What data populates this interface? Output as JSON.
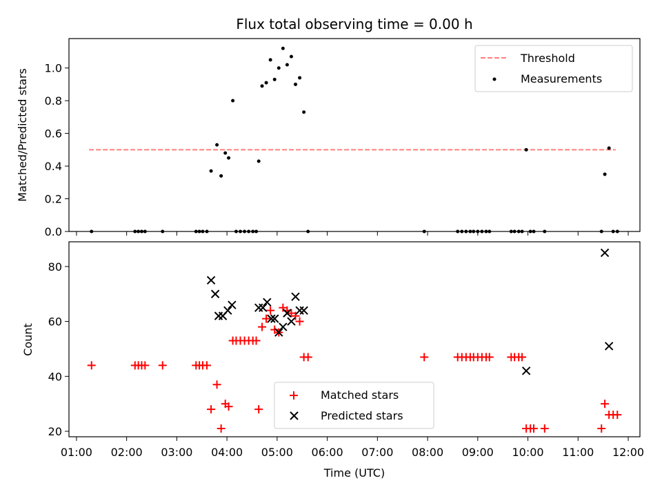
{
  "title": "Flux total observing time = 0.00 h",
  "chart_data": [
    {
      "type": "scatter",
      "ylabel": "Matched/Predicted stars",
      "xlim": [
        "00:51",
        "12:14"
      ],
      "ylim": [
        0,
        1.18
      ],
      "yticks": [
        "0.0",
        "0.2",
        "0.4",
        "0.6",
        "0.8",
        "1.0"
      ],
      "ytick_values": [
        0,
        0.2,
        0.4,
        0.6,
        0.8,
        1.0
      ],
      "legend": {
        "placement": "upper right",
        "entries": [
          "Threshold",
          "Measurements"
        ]
      },
      "threshold": {
        "name": "Threshold",
        "value": 0.5,
        "x_start": "01:15",
        "x_end": "11:45",
        "color": "#ff7f7f",
        "style": "dashed"
      },
      "series": [
        {
          "name": "Measurements",
          "color": "#000000",
          "marker": "dot",
          "points": [
            [
              "01:18",
              0
            ],
            [
              "02:10",
              0
            ],
            [
              "02:14",
              0
            ],
            [
              "02:18",
              0
            ],
            [
              "02:22",
              0
            ],
            [
              "02:43",
              0
            ],
            [
              "03:23",
              0
            ],
            [
              "03:27",
              0
            ],
            [
              "03:31",
              0
            ],
            [
              "03:36",
              0
            ],
            [
              "03:41",
              0.37
            ],
            [
              "03:48",
              0.53
            ],
            [
              "03:53",
              0.34
            ],
            [
              "03:58",
              0.48
            ],
            [
              "04:02",
              0.45
            ],
            [
              "04:07",
              0.8
            ],
            [
              "04:11",
              0
            ],
            [
              "04:16",
              0
            ],
            [
              "04:21",
              0
            ],
            [
              "04:26",
              0
            ],
            [
              "04:31",
              0
            ],
            [
              "04:35",
              0
            ],
            [
              "04:38",
              0.43
            ],
            [
              "04:42",
              0.89
            ],
            [
              "04:47",
              0.91
            ],
            [
              "04:52",
              1.05
            ],
            [
              "04:57",
              0.93
            ],
            [
              "05:02",
              1.0
            ],
            [
              "05:07",
              1.12
            ],
            [
              "05:12",
              1.02
            ],
            [
              "05:17",
              1.07
            ],
            [
              "05:22",
              0.9
            ],
            [
              "05:27",
              0.94
            ],
            [
              "05:32",
              0.73
            ],
            [
              "05:37",
              0
            ],
            [
              "07:56",
              0
            ],
            [
              "08:36",
              0
            ],
            [
              "08:41",
              0
            ],
            [
              "08:46",
              0
            ],
            [
              "08:51",
              0
            ],
            [
              "08:55",
              0
            ],
            [
              "09:00",
              0
            ],
            [
              "09:05",
              0
            ],
            [
              "09:10",
              0
            ],
            [
              "09:14",
              0
            ],
            [
              "09:40",
              0
            ],
            [
              "09:44",
              0
            ],
            [
              "09:49",
              0
            ],
            [
              "09:53",
              0
            ],
            [
              "09:58",
              0.5
            ],
            [
              "10:03",
              0
            ],
            [
              "10:07",
              0
            ],
            [
              "10:20",
              0
            ],
            [
              "11:28",
              0
            ],
            [
              "11:32",
              0.35
            ],
            [
              "11:37",
              0.51
            ],
            [
              "11:42",
              0
            ],
            [
              "11:47",
              0
            ]
          ]
        }
      ]
    },
    {
      "type": "scatter",
      "xlabel": "Time (UTC)",
      "ylabel": "Count",
      "xlim": [
        "00:51",
        "12:14"
      ],
      "ylim": [
        18,
        89
      ],
      "xticks": [
        "01:00",
        "02:00",
        "03:00",
        "04:00",
        "05:00",
        "06:00",
        "07:00",
        "08:00",
        "09:00",
        "10:00",
        "11:00",
        "12:00"
      ],
      "yticks": [
        "20",
        "40",
        "60",
        "80"
      ],
      "ytick_values": [
        20,
        40,
        60,
        80
      ],
      "legend": {
        "placement": "lower center",
        "entries": [
          "Matched stars",
          "Predicted stars"
        ]
      },
      "series": [
        {
          "name": "Matched stars",
          "color": "#ff0000",
          "marker": "plus",
          "points": [
            [
              "01:18",
              44
            ],
            [
              "02:10",
              44
            ],
            [
              "02:14",
              44
            ],
            [
              "02:18",
              44
            ],
            [
              "02:22",
              44
            ],
            [
              "02:43",
              44
            ],
            [
              "03:23",
              44
            ],
            [
              "03:27",
              44
            ],
            [
              "03:31",
              44
            ],
            [
              "03:36",
              44
            ],
            [
              "03:41",
              28
            ],
            [
              "03:48",
              37
            ],
            [
              "03:53",
              21
            ],
            [
              "03:58",
              30
            ],
            [
              "04:02",
              29
            ],
            [
              "04:07",
              53
            ],
            [
              "04:11",
              53
            ],
            [
              "04:16",
              53
            ],
            [
              "04:21",
              53
            ],
            [
              "04:26",
              53
            ],
            [
              "04:31",
              53
            ],
            [
              "04:35",
              53
            ],
            [
              "04:38",
              28
            ],
            [
              "04:42",
              58
            ],
            [
              "04:47",
              61
            ],
            [
              "04:52",
              64
            ],
            [
              "04:57",
              57
            ],
            [
              "05:02",
              56
            ],
            [
              "05:07",
              65
            ],
            [
              "05:12",
              64
            ],
            [
              "05:17",
              63
            ],
            [
              "05:22",
              62
            ],
            [
              "05:27",
              60
            ],
            [
              "05:32",
              47
            ],
            [
              "05:37",
              47
            ],
            [
              "07:56",
              47
            ],
            [
              "08:36",
              47
            ],
            [
              "08:41",
              47
            ],
            [
              "08:46",
              47
            ],
            [
              "08:51",
              47
            ],
            [
              "08:55",
              47
            ],
            [
              "09:00",
              47
            ],
            [
              "09:05",
              47
            ],
            [
              "09:10",
              47
            ],
            [
              "09:14",
              47
            ],
            [
              "09:40",
              47
            ],
            [
              "09:44",
              47
            ],
            [
              "09:49",
              47
            ],
            [
              "09:53",
              47
            ],
            [
              "09:58",
              21
            ],
            [
              "10:03",
              21
            ],
            [
              "10:07",
              21
            ],
            [
              "10:20",
              21
            ],
            [
              "11:28",
              21
            ],
            [
              "11:32",
              30
            ],
            [
              "11:37",
              26
            ],
            [
              "11:42",
              26
            ],
            [
              "11:47",
              26
            ]
          ]
        },
        {
          "name": "Predicted stars",
          "color": "#000000",
          "marker": "x",
          "points": [
            [
              "03:41",
              75
            ],
            [
              "03:46",
              70
            ],
            [
              "03:50",
              62
            ],
            [
              "03:55",
              62
            ],
            [
              "04:01",
              64
            ],
            [
              "04:06",
              66
            ],
            [
              "04:38",
              65
            ],
            [
              "04:43",
              65
            ],
            [
              "04:48",
              67
            ],
            [
              "04:53",
              61
            ],
            [
              "04:57",
              61
            ],
            [
              "05:02",
              56
            ],
            [
              "05:07",
              58
            ],
            [
              "05:12",
              63
            ],
            [
              "05:17",
              60
            ],
            [
              "05:22",
              69
            ],
            [
              "05:27",
              64
            ],
            [
              "05:32",
              64
            ],
            [
              "09:58",
              42
            ],
            [
              "11:32",
              85
            ],
            [
              "11:37",
              51
            ]
          ]
        }
      ]
    }
  ]
}
